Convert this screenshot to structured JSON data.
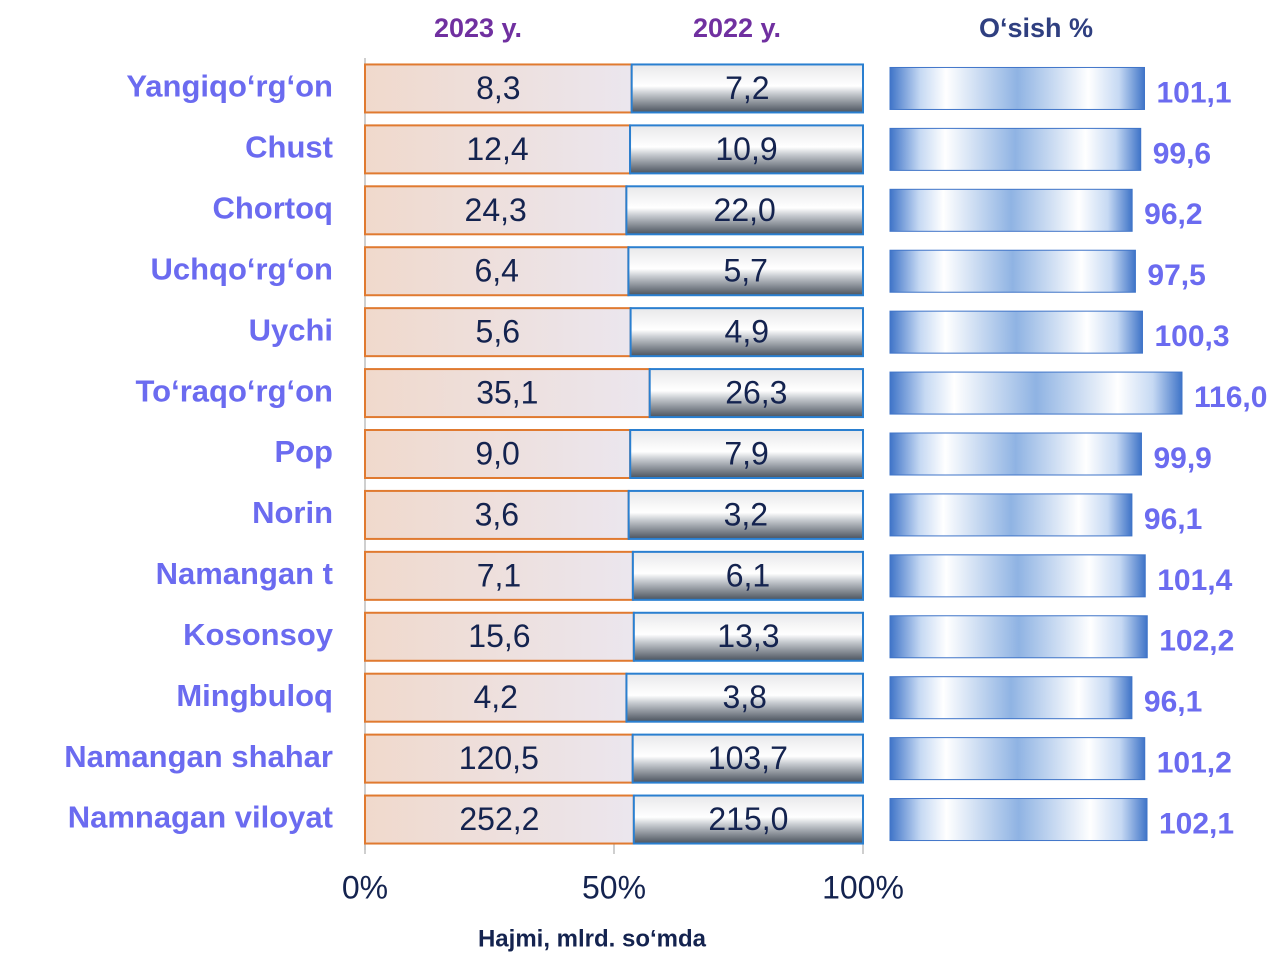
{
  "chart_data": [
    {
      "type": "bar",
      "stacked": "percent",
      "x_label": "Hajmi, mlrd. so‘mda",
      "categories": [
        "Yangiqo‘rg‘on",
        "Chust",
        "Chortoq",
        "Uchqo‘rg‘on",
        "Uychi",
        "To‘raqo‘rg‘on",
        "Pop",
        "Norin",
        "Namangan t",
        "Kosonsoy",
        "Mingbuloq",
        "Namangan shahar",
        "Namnagan viloyat"
      ],
      "series": [
        {
          "name": "2023 y.",
          "color": "#e07a30",
          "values": [
            8.3,
            12.4,
            24.3,
            6.4,
            5.6,
            35.1,
            9.0,
            3.6,
            7.1,
            15.6,
            4.2,
            120.5,
            252.2
          ],
          "value_labels": [
            "8,3",
            "12,4",
            "24,3",
            "6,4",
            "5,6",
            "35,1",
            "9,0",
            "3,6",
            "7,1",
            "15,6",
            "4,2",
            "120,5",
            "252,2"
          ]
        },
        {
          "name": "2022 y.",
          "color": "#2a7fd0",
          "values": [
            7.2,
            10.9,
            22.0,
            5.7,
            4.9,
            26.3,
            7.9,
            3.2,
            6.1,
            13.3,
            3.8,
            103.7,
            215.0
          ],
          "value_labels": [
            "7,2",
            "10,9",
            "22,0",
            "5,7",
            "4,9",
            "26,3",
            "7,9",
            "3,2",
            "6,1",
            "13,3",
            "3,8",
            "103,7",
            "215,0"
          ]
        }
      ],
      "xlim": [
        0,
        100
      ],
      "xticks": [
        {
          "value": 0,
          "label": "0%"
        },
        {
          "value": 50,
          "label": "50%"
        },
        {
          "value": 100,
          "label": "100%"
        }
      ]
    },
    {
      "type": "bar",
      "title": "O‘sish %",
      "color": "#3f74c8",
      "values": [
        101.1,
        99.6,
        96.2,
        97.5,
        100.3,
        116.0,
        99.9,
        96.1,
        101.4,
        102.2,
        96.1,
        101.2,
        102.1
      ],
      "value_labels": [
        "101,1",
        "99,6",
        "96,2",
        "97,5",
        "100,3",
        "116,0",
        "99,9",
        "96,1",
        "101,4",
        "102,2",
        "96,1",
        "101,2",
        "102,1"
      ]
    }
  ]
}
